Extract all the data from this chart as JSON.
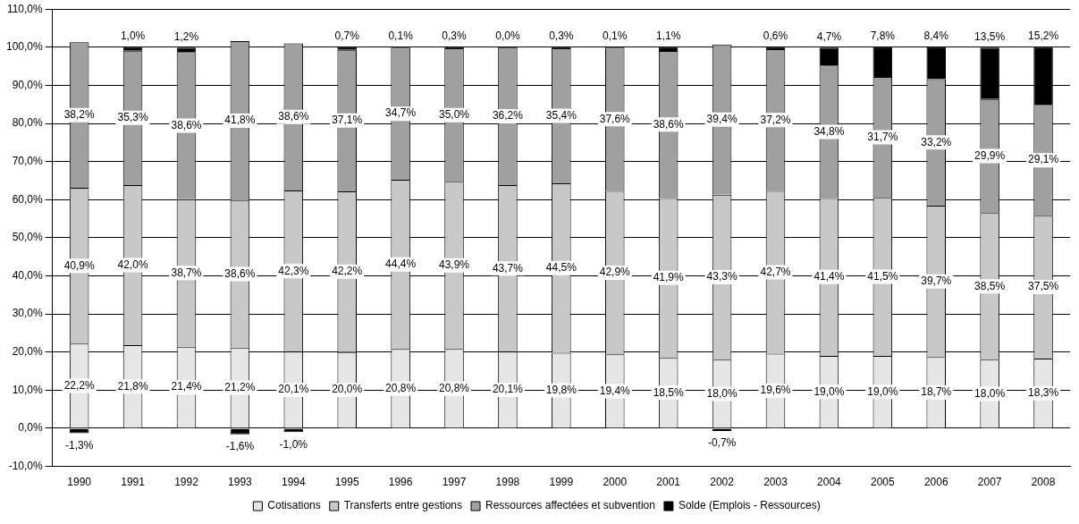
{
  "chart_data": {
    "type": "bar",
    "stacked": true,
    "categories": [
      "1990",
      "1991",
      "1992",
      "1993",
      "1994",
      "1995",
      "1996",
      "1997",
      "1998",
      "1999",
      "2000",
      "2001",
      "2002",
      "2003",
      "2004",
      "2005",
      "2006",
      "2007",
      "2008"
    ],
    "series": [
      {
        "name": "Cotisations",
        "color": "#e6e6e6",
        "values": [
          22.2,
          21.8,
          21.4,
          21.2,
          20.1,
          20.0,
          20.8,
          20.8,
          20.1,
          19.8,
          19.4,
          18.5,
          18.0,
          19.6,
          19.0,
          19.0,
          18.7,
          18.0,
          18.3
        ],
        "value_labels": [
          "22,2%",
          "21,8%",
          "21,4%",
          "21,2%",
          "20,1%",
          "20,0%",
          "20,8%",
          "20,8%",
          "20,1%",
          "19,8%",
          "19,4%",
          "18,5%",
          "18,0%",
          "19,6%",
          "19,0%",
          "19,0%",
          "18,7%",
          "18,0%",
          "18,3%"
        ]
      },
      {
        "name": "Transferts entre gestions",
        "color": "#c8c8c8",
        "values": [
          40.9,
          42.0,
          38.7,
          38.6,
          42.3,
          42.2,
          44.4,
          43.9,
          43.7,
          44.5,
          42.9,
          41.9,
          43.3,
          42.7,
          41.4,
          41.5,
          39.7,
          38.5,
          37.5
        ],
        "value_labels": [
          "40,9%",
          "42,0%",
          "38,7%",
          "38,6%",
          "42,3%",
          "42,2%",
          "44,4%",
          "43,9%",
          "43,7%",
          "44,5%",
          "42,9%",
          "41,9%",
          "43,3%",
          "42,7%",
          "41,4%",
          "41,5%",
          "39,7%",
          "38,5%",
          "37,5%"
        ]
      },
      {
        "name": "Ressources affectées et subvention",
        "color": "#a0a0a0",
        "values": [
          38.2,
          35.3,
          38.6,
          41.8,
          38.6,
          37.1,
          34.7,
          35.0,
          36.2,
          35.4,
          37.6,
          38.6,
          39.4,
          37.2,
          34.8,
          31.7,
          33.2,
          29.9,
          29.1
        ],
        "value_labels": [
          "38,2%",
          "35,3%",
          "38,6%",
          "41,8%",
          "38,6%",
          "37,1%",
          "34,7%",
          "35,0%",
          "36,2%",
          "35,4%",
          "37,6%",
          "38,6%",
          "39,4%",
          "37,2%",
          "34,8%",
          "31,7%",
          "33,2%",
          "29,9%",
          "29,1%"
        ]
      },
      {
        "name": "Solde (Emplois - Ressources)",
        "color": "#000000",
        "values": [
          -1.3,
          1.0,
          1.2,
          -1.6,
          -1.0,
          0.7,
          0.1,
          0.3,
          0.0,
          0.3,
          0.1,
          1.1,
          -0.7,
          0.6,
          4.7,
          7.8,
          8.4,
          13.5,
          15.2
        ],
        "value_labels": [
          "-1,3%",
          "1,0%",
          "1,2%",
          "-1,6%",
          "-1,0%",
          "0,7%",
          "0,1%",
          "0,3%",
          "0,0%",
          "0,3%",
          "0,1%",
          "1,1%",
          "-0,7%",
          "0,6%",
          "4,7%",
          "7,8%",
          "8,4%",
          "13,5%",
          "15,2%"
        ]
      }
    ],
    "ylim": [
      -10,
      110
    ],
    "yticks": [
      {
        "value": -10,
        "label": "-10,0%"
      },
      {
        "value": 0,
        "label": "0,0%"
      },
      {
        "value": 10,
        "label": "10,0%"
      },
      {
        "value": 20,
        "label": "20,0%"
      },
      {
        "value": 30,
        "label": "30,0%"
      },
      {
        "value": 40,
        "label": "40,0%"
      },
      {
        "value": 50,
        "label": "50,0%"
      },
      {
        "value": 60,
        "label": "60,0%"
      },
      {
        "value": 70,
        "label": "70,0%"
      },
      {
        "value": 80,
        "label": "80,0%"
      },
      {
        "value": 90,
        "label": "90,0%"
      },
      {
        "value": 100,
        "label": "100,0%"
      },
      {
        "value": 110,
        "label": "110,0%"
      }
    ],
    "grid": "y",
    "legend": "bottom"
  }
}
